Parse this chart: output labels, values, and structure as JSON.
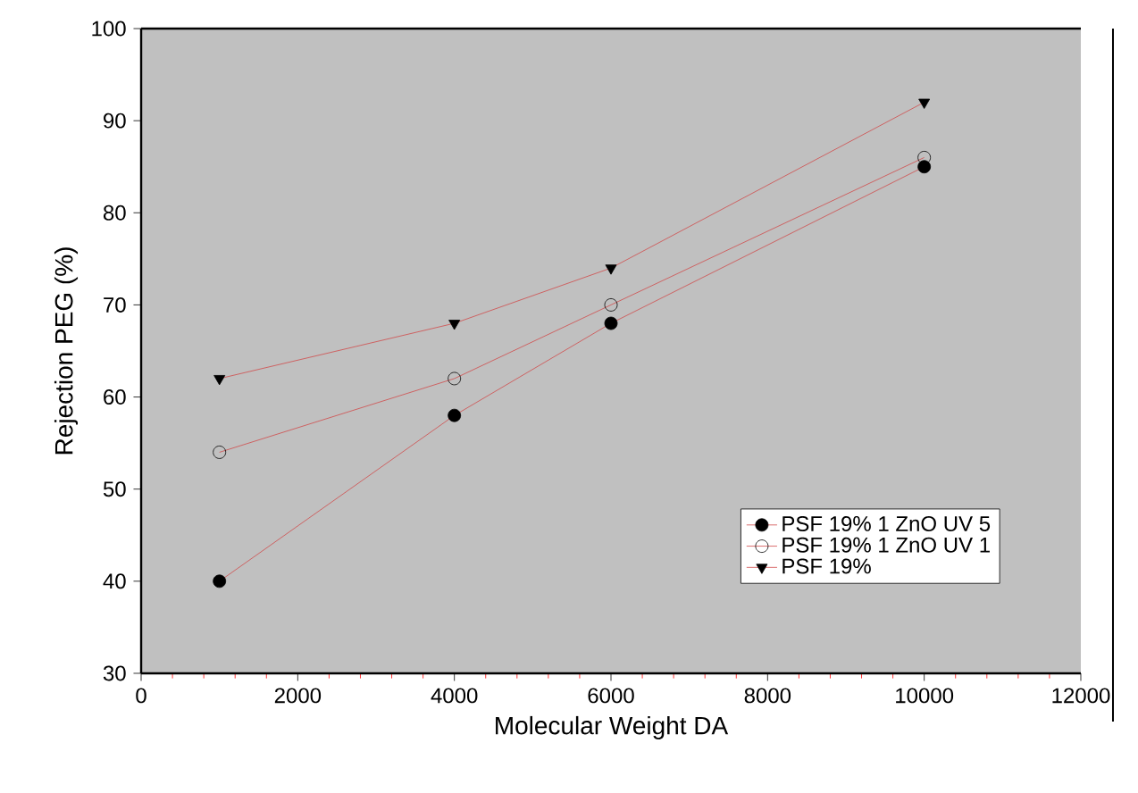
{
  "chart_data": {
    "type": "line",
    "xlabel": "Molecular Weight DA",
    "ylabel": "Rejection PEG (%)",
    "x": [
      1000,
      4000,
      6000,
      10000
    ],
    "series": [
      {
        "name": "PSF 19% 1 ZnO UV 5",
        "color": "#d04a4a",
        "marker": "circle",
        "values": [
          40,
          58,
          68,
          85
        ]
      },
      {
        "name": "PSF 19% 1 ZnO UV 1",
        "color": "#d04a4a",
        "marker": "open circle",
        "values": [
          54,
          62,
          70,
          86
        ]
      },
      {
        "name": "PSF 19%",
        "color": "#d04a4a",
        "marker": "triangle",
        "values": [
          62,
          68,
          74,
          92
        ]
      }
    ],
    "xlim": [
      0,
      12000
    ],
    "xticks": [
      0,
      2000,
      4000,
      6000,
      8000,
      10000,
      12000
    ],
    "ylim": [
      30,
      100
    ],
    "yticks": [
      30,
      40,
      50,
      60,
      70,
      80,
      90,
      100
    ],
    "legend": "bottom right",
    "grid": false
  }
}
